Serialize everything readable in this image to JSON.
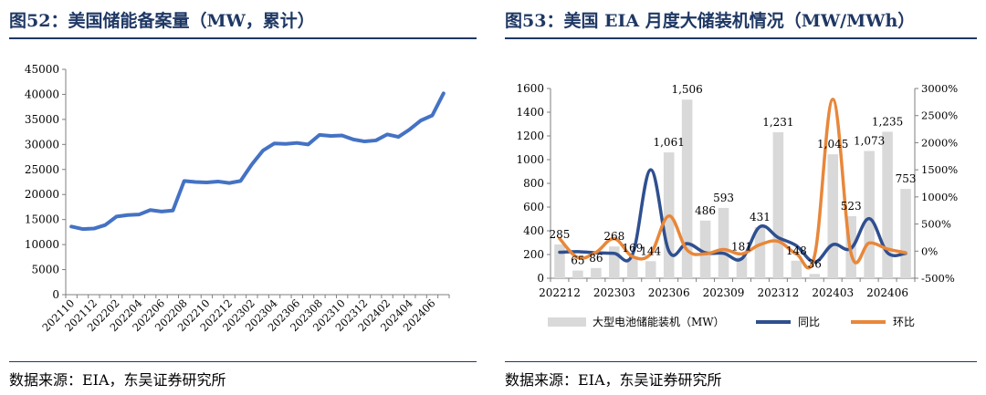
{
  "left_panel": {
    "title": "图52：美国储能备案量（MW，累计）",
    "source": "数据来源：EIA，东吴证券研究所"
  },
  "right_panel": {
    "title": "图53：美国 EIA 月度大储装机情况（MW/MWh）",
    "source": "数据来源：EIA，东吴证券研究所"
  },
  "colors": {
    "title": "#1f3864",
    "line_blue": "#4472c4",
    "bar_grey": "#d9d9d9",
    "yoy_navy": "#2f4f8f",
    "mom_orange": "#e8873a"
  },
  "chart_data": [
    {
      "type": "line",
      "title": "",
      "xlabel": "",
      "ylabel": "",
      "ylim": [
        0,
        45000
      ],
      "yticks": [
        "0",
        "5000",
        "10000",
        "15000",
        "20000",
        "25000",
        "30000",
        "35000",
        "40000",
        "45000"
      ],
      "xtick_labels": [
        "202110",
        "202112",
        "202202",
        "202204",
        "202206",
        "202208",
        "202210",
        "202212",
        "202302",
        "202304",
        "202306",
        "202308",
        "202310",
        "202312",
        "202402",
        "202404",
        "202406"
      ],
      "categories": [
        "202110",
        "202111",
        "202112",
        "202201",
        "202202",
        "202203",
        "202204",
        "202205",
        "202206",
        "202207",
        "202208",
        "202209",
        "202210",
        "202211",
        "202212",
        "202301",
        "202302",
        "202303",
        "202304",
        "202305",
        "202306",
        "202307",
        "202308",
        "202309",
        "202310",
        "202311",
        "202312",
        "202401",
        "202402",
        "202403",
        "202404",
        "202405",
        "202406",
        "202407"
      ],
      "series": [
        {
          "name": "",
          "values": [
            13600,
            13100,
            13200,
            13900,
            15600,
            15900,
            16000,
            16900,
            16600,
            16800,
            22700,
            22500,
            22400,
            22600,
            22300,
            22700,
            26000,
            28800,
            30200,
            30100,
            30300,
            30000,
            31900,
            31700,
            31800,
            31000,
            30600,
            30800,
            32000,
            31500,
            33000,
            34800,
            35800,
            40200
          ]
        }
      ],
      "grid": false,
      "legend": "none"
    },
    {
      "type": "bar",
      "title": "",
      "xlabel": "",
      "ylabel": "",
      "ylim": [
        0,
        1600
      ],
      "y2lim": [
        -500,
        3000
      ],
      "yticks": [
        "0",
        "200",
        "400",
        "600",
        "800",
        "1000",
        "1200",
        "1400",
        "1600"
      ],
      "y2ticks": [
        "-500%",
        "0%",
        "500%",
        "1000%",
        "1500%",
        "2000%",
        "2500%",
        "3000%"
      ],
      "xtick_labels": [
        "202212",
        "202303",
        "202306",
        "202309",
        "202312",
        "202403",
        "202406"
      ],
      "categories": [
        "202212",
        "202301",
        "202302",
        "202303",
        "202304",
        "202305",
        "202306",
        "202307",
        "202308",
        "202309",
        "202310",
        "202311",
        "202312",
        "202401",
        "202402",
        "202403",
        "202404",
        "202405",
        "202406",
        "202407"
      ],
      "legend": "bottom",
      "series": [
        {
          "name": "大型电池储能装机（MW）",
          "type": "bar",
          "axis": "left",
          "values": [
            285,
            65,
            86,
            268,
            169,
            144,
            1061,
            1506,
            486,
            593,
            181,
            431,
            1231,
            148,
            36,
            1045,
            523,
            1073,
            1235,
            753
          ],
          "data_labels": [
            "285",
            "65",
            "86",
            "268",
            "169",
            "144",
            "1,061",
            "1,506",
            "486",
            "593",
            "181",
            "431",
            "1,231",
            "148",
            "36",
            "1,045",
            "523",
            "1,073",
            "1,235",
            "753"
          ]
        },
        {
          "name": "同比",
          "type": "line",
          "axis": "right",
          "values": [
            -20,
            -10,
            -30,
            -40,
            -60,
            1500,
            0,
            140,
            -30,
            -40,
            -140,
            450,
            250,
            100,
            -200,
            120,
            50,
            600,
            -30,
            -40
          ]
        },
        {
          "name": "环比",
          "type": "line",
          "axis": "right",
          "values": [
            230,
            -120,
            -20,
            230,
            -100,
            -50,
            650,
            20,
            -50,
            30,
            -50,
            120,
            180,
            -50,
            -80,
            2800,
            -40,
            150,
            40,
            -30
          ]
        }
      ]
    }
  ]
}
